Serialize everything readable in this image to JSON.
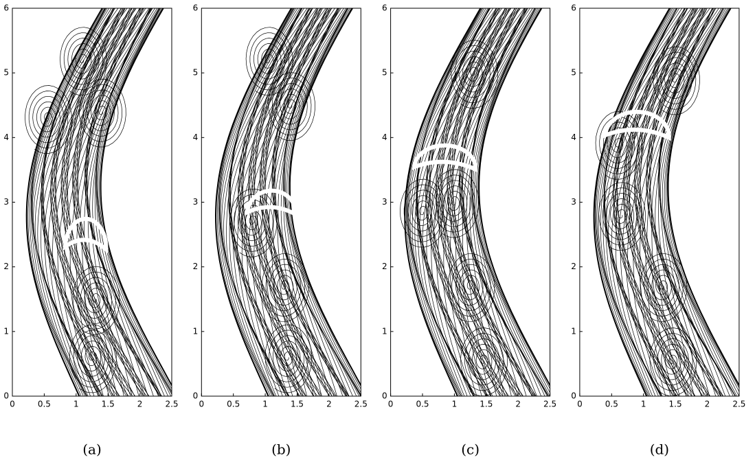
{
  "chart_data": [
    {
      "type": "streamline",
      "caption": "(a)",
      "xlim": [
        0,
        2.5
      ],
      "ylim": [
        0,
        6
      ],
      "xticks": [
        0,
        0.5,
        1,
        1.5,
        2,
        2.5
      ],
      "yticks": [
        0,
        1,
        2,
        3,
        4,
        5,
        6
      ]
    },
    {
      "type": "streamline",
      "caption": "(b)",
      "xlim": [
        0,
        2.5
      ],
      "ylim": [
        0,
        6
      ],
      "xticks": [
        0,
        0.5,
        1,
        1.5,
        2,
        2.5
      ],
      "yticks": [
        0,
        1,
        2,
        3,
        4,
        5,
        6
      ]
    },
    {
      "type": "streamline",
      "caption": "(c)",
      "xlim": [
        0,
        2.5
      ],
      "ylim": [
        0,
        6
      ],
      "xticks": [
        0,
        0.5,
        1,
        1.5,
        2,
        2.5
      ],
      "yticks": [
        0,
        1,
        2,
        3,
        4,
        5,
        6
      ]
    },
    {
      "type": "streamline",
      "caption": "(d)",
      "xlim": [
        0,
        2.5
      ],
      "ylim": [
        0,
        6
      ],
      "xticks": [
        0,
        0.5,
        1,
        1.5,
        2,
        2.5
      ],
      "yticks": [
        0,
        1,
        2,
        3,
        4,
        5,
        6
      ]
    }
  ]
}
